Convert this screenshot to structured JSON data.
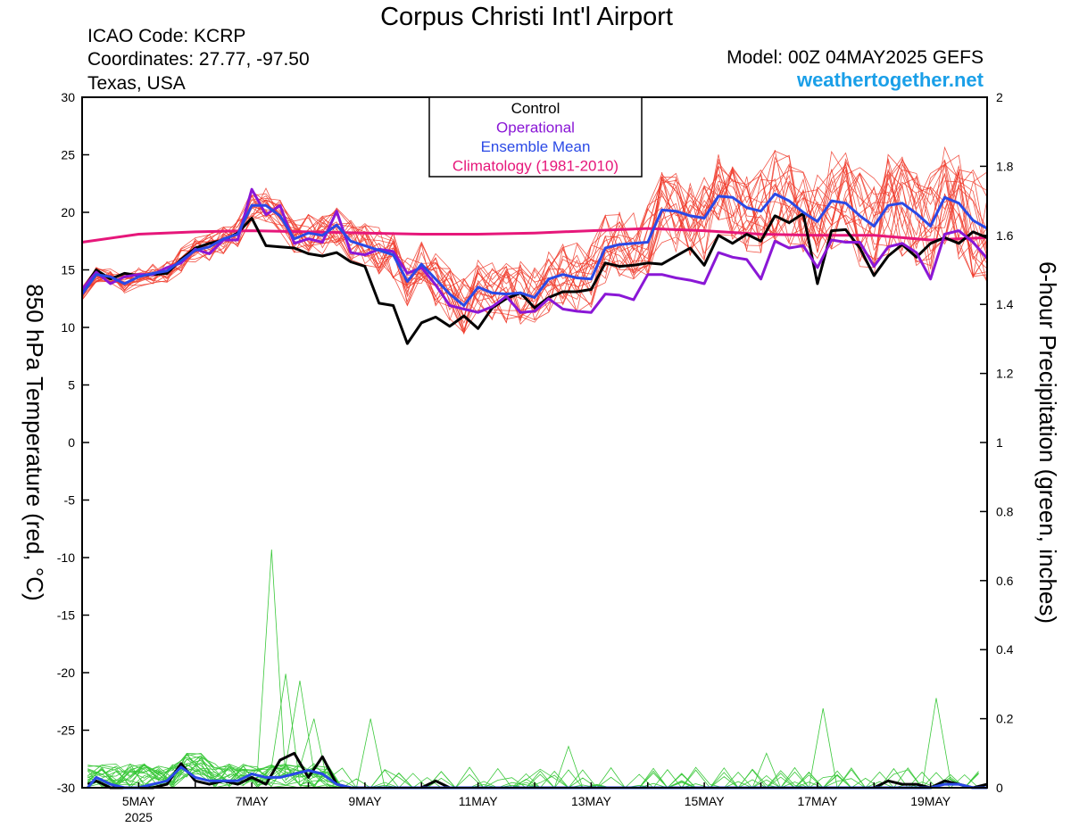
{
  "header": {
    "title": "Corpus Christi Int'l Airport",
    "icao": "ICAO Code: KCRP",
    "coords": "Coordinates: 27.77, -97.50",
    "location": "Texas, USA",
    "model": "Model: 00Z 04MAY2025 GEFS",
    "brand": "weathertogether.net"
  },
  "legend": {
    "items": [
      {
        "label": "Control",
        "color": "#000000"
      },
      {
        "label": "Operational",
        "color": "#8a17d6"
      },
      {
        "label": "Ensemble Mean",
        "color": "#2a49e6"
      },
      {
        "label": "Climatology (1981-2010)",
        "color": "#e6177a"
      }
    ]
  },
  "chart_data": {
    "type": "line",
    "title": "Corpus Christi Int'l Airport",
    "ylabel": "850 hPa Temperature (red, °C)",
    "y2label": "6-hour Precipitation (green, inches)",
    "ylim": [
      -30,
      30
    ],
    "y2lim": [
      0,
      2
    ],
    "y_ticks": [
      30,
      25,
      20,
      15,
      10,
      5,
      0,
      -5,
      -10,
      -15,
      -20,
      -25,
      -30
    ],
    "y2_ticks": [
      "2",
      "1.8",
      "1.6",
      "1.4",
      "1.2",
      "1",
      "0.8",
      "0.6",
      "0.4",
      "0.2",
      "0"
    ],
    "x_ticks": [
      {
        "day": 5,
        "label": "5MAY",
        "sub": "2025"
      },
      {
        "day": 7,
        "label": "7MAY"
      },
      {
        "day": 9,
        "label": "9MAY"
      },
      {
        "day": 11,
        "label": "11MAY"
      },
      {
        "day": 13,
        "label": "13MAY"
      },
      {
        "day": 15,
        "label": "15MAY"
      },
      {
        "day": 17,
        "label": "17MAY"
      },
      {
        "day": 19,
        "label": "19MAY"
      }
    ],
    "xlim_day": [
      4.0,
      20.0
    ],
    "grid": false,
    "series": [
      {
        "name": "Control",
        "axis": "temp",
        "color": "#000000",
        "x": [
          4,
          4.25,
          4.5,
          4.75,
          5,
          5.25,
          5.5,
          5.75,
          6,
          6.25,
          6.5,
          6.75,
          7,
          7.25,
          7.5,
          7.75,
          8,
          8.25,
          8.5,
          8.75,
          9,
          9.25,
          9.5,
          9.75,
          10,
          10.25,
          10.5,
          10.75,
          11,
          11.25,
          11.5,
          11.75,
          12,
          12.25,
          12.5,
          12.75,
          13,
          13.25,
          13.5,
          13.75,
          14,
          14.25,
          14.5,
          14.75,
          15,
          15.25,
          15.5,
          15.75,
          16,
          16.25,
          16.5,
          16.75,
          17,
          17.25,
          17.5,
          17.75,
          18,
          18.25,
          18.5,
          18.75,
          19,
          19.25,
          19.5,
          19.75,
          20
        ],
        "y": [
          13.2,
          15,
          14.2,
          14.7,
          14.5,
          14.6,
          14.7,
          15.9,
          16.9,
          17.3,
          17.6,
          18.2,
          19.5,
          17.1,
          17,
          16.9,
          16.4,
          16.2,
          16.5,
          15.7,
          15.3,
          12.1,
          11.9,
          8.6,
          10.4,
          10.9,
          10.1,
          11,
          9.9,
          11.7,
          12.5,
          13,
          11.7,
          12.6,
          13.1,
          13.1,
          13.3,
          15.6,
          15.3,
          15.4,
          15.6,
          15.5,
          16.2,
          16.9,
          15.4,
          18,
          17.3,
          18.1,
          17.5,
          19.7,
          19.1,
          19.9,
          13.8,
          18.4,
          18.5,
          16.9,
          14.5,
          16.2,
          17.2,
          16.1,
          17.3,
          17.8,
          17.3,
          18.3,
          17.8
        ]
      },
      {
        "name": "Operational",
        "axis": "temp",
        "color": "#8a17d6",
        "x": [
          4,
          4.25,
          4.5,
          4.75,
          5,
          5.25,
          5.5,
          5.75,
          6,
          6.25,
          6.5,
          6.75,
          7,
          7.25,
          7.5,
          7.75,
          8,
          8.25,
          8.5,
          8.75,
          9,
          9.25,
          9.5,
          9.75,
          10,
          10.25,
          10.5,
          10.75,
          11,
          11.25,
          11.5,
          11.75,
          12,
          12.25,
          12.5,
          12.75,
          13,
          13.25,
          13.5,
          13.75,
          14,
          14.25,
          14.5,
          14.75,
          15,
          15.25,
          15.5,
          15.75,
          16,
          16.25,
          16.5,
          16.75,
          17,
          17.25,
          17.5,
          17.75,
          18,
          18.25,
          18.5,
          18.75,
          19,
          19.25,
          19.5,
          19.75,
          20
        ],
        "y": [
          13.3,
          14.8,
          13.8,
          14.4,
          14.6,
          14.6,
          15.2,
          15.6,
          16.8,
          16.4,
          17.6,
          17.6,
          22,
          19.8,
          20.6,
          17.3,
          17.7,
          17.4,
          20.1,
          16.5,
          16.3,
          16.8,
          16.6,
          14.7,
          15.2,
          13.7,
          11.9,
          11.6,
          11.3,
          11.8,
          12.7,
          11.3,
          11.4,
          12.5,
          11.6,
          11.4,
          11.3,
          12.9,
          12.8,
          12.4,
          14.6,
          14.6,
          14.3,
          14.1,
          13.8,
          16.5,
          16.1,
          15.9,
          14.2,
          17.5,
          16.9,
          17.1,
          15.2,
          17.6,
          17.4,
          17.4,
          15.3,
          17,
          17.3,
          16.5,
          14.2,
          18.1,
          18.4,
          17.4,
          16
        ]
      },
      {
        "name": "Ensemble Mean",
        "axis": "temp",
        "color": "#2a49e6",
        "x": [
          4,
          4.25,
          4.5,
          4.75,
          5,
          5.25,
          5.5,
          5.75,
          6,
          6.25,
          6.5,
          6.75,
          7,
          7.25,
          7.5,
          7.75,
          8,
          8.25,
          8.5,
          8.75,
          9,
          9.25,
          9.5,
          9.75,
          10,
          10.25,
          10.5,
          10.75,
          11,
          11.25,
          11.5,
          11.75,
          12,
          12.25,
          12.5,
          12.75,
          13,
          13.25,
          13.5,
          13.75,
          14,
          14.25,
          14.5,
          14.75,
          15,
          15.25,
          15.5,
          15.75,
          16,
          16.25,
          16.5,
          16.75,
          17,
          17.25,
          17.5,
          17.75,
          18,
          18.25,
          18.5,
          18.75,
          19,
          19.25,
          19.5,
          19.75,
          20
        ],
        "y": [
          12.9,
          14.6,
          14.4,
          13.8,
          14.4,
          14.7,
          14.9,
          15.8,
          16.7,
          17,
          17.7,
          18.1,
          20.6,
          20.6,
          19.7,
          17.7,
          18.2,
          18,
          18.9,
          17.5,
          17.1,
          16.7,
          16.3,
          14,
          15.5,
          14.2,
          12.9,
          11.9,
          13.5,
          13,
          12.9,
          13,
          12.6,
          14.2,
          14.6,
          14.3,
          14.2,
          16.9,
          17.2,
          17.3,
          17.4,
          20.2,
          20.1,
          19.7,
          19.5,
          21.4,
          21.3,
          20.4,
          20.1,
          21.6,
          21,
          20,
          19.2,
          21,
          20.8,
          19.7,
          18.8,
          20.6,
          20.8,
          19.9,
          18.8,
          21.3,
          20.8,
          19.3,
          18.6
        ]
      },
      {
        "name": "Climatology (1981-2010)",
        "axis": "temp",
        "color": "#e6177a",
        "x": [
          4,
          5,
          6,
          7,
          8,
          9,
          10,
          11,
          12,
          13,
          14,
          15,
          16,
          17,
          18,
          19,
          20
        ],
        "y": [
          17.4,
          18.1,
          18.3,
          18.4,
          18.3,
          18.2,
          18.1,
          18.1,
          18.2,
          18.4,
          18.6,
          18.4,
          18.1,
          18.0,
          18.0,
          17.6,
          17.8
        ]
      },
      {
        "name": "Control",
        "axis": "precip",
        "color": "#000000",
        "x": [
          4.1,
          4.25,
          4.5,
          4.75,
          5,
          5.25,
          5.5,
          5.75,
          6,
          6.25,
          6.5,
          6.75,
          7,
          7.25,
          7.5,
          7.75,
          8,
          8.25,
          8.5,
          8.75,
          9,
          9.25,
          9.5,
          9.75,
          10,
          10.25,
          10.5,
          10.75,
          11,
          11.5,
          12,
          13,
          14,
          15,
          16,
          16.5,
          17,
          17.5,
          17.75,
          18,
          18.25,
          18.5,
          18.75,
          19,
          19.25,
          19.5,
          19.75,
          20
        ],
        "y": [
          0.01,
          0.02,
          0.0,
          0.0,
          0.0,
          0.0,
          0.01,
          0.07,
          0.02,
          0.01,
          0.02,
          0.01,
          0.03,
          0.01,
          0.08,
          0.1,
          0.03,
          0.09,
          0.01,
          0.0,
          0.0,
          0.0,
          0.0,
          0.0,
          0.0,
          0.02,
          0.0,
          0.0,
          0.0,
          0.0,
          0.0,
          0.0,
          0.0,
          0.0,
          0.0,
          0.0,
          0.0,
          0.0,
          0.0,
          0.0,
          0.02,
          0.01,
          0.01,
          0.0,
          0.02,
          0.01,
          0.0,
          0.01
        ]
      },
      {
        "name": "Ensemble Mean",
        "axis": "precip",
        "color": "#2a49e6",
        "x": [
          4.1,
          4.25,
          4.5,
          4.75,
          5,
          5.25,
          5.5,
          5.75,
          6,
          6.25,
          6.5,
          6.75,
          7,
          7.25,
          7.5,
          7.75,
          8,
          8.25,
          8.5,
          8.75,
          9,
          9.5,
          10,
          11,
          12,
          13,
          14,
          15,
          15.5,
          16,
          16.5,
          17,
          17.5,
          18,
          18.5,
          19,
          19.25,
          19.5,
          19.75,
          20
        ],
        "y": [
          0.0,
          0.03,
          0.01,
          0.0,
          0.0,
          0.01,
          0.02,
          0.06,
          0.03,
          0.02,
          0.02,
          0.02,
          0.04,
          0.03,
          0.03,
          0.04,
          0.05,
          0.04,
          0.01,
          0.0,
          0.0,
          0.0,
          0.0,
          0.0,
          0.0,
          0.0,
          0.0,
          0.0,
          0.0,
          0.0,
          0.0,
          0.0,
          0.0,
          0.0,
          0.0,
          0.0,
          0.01,
          0.01,
          0.0,
          0.0
        ]
      }
    ],
    "ensemble_temp_count": 20,
    "ensemble_precip_count": 20
  }
}
